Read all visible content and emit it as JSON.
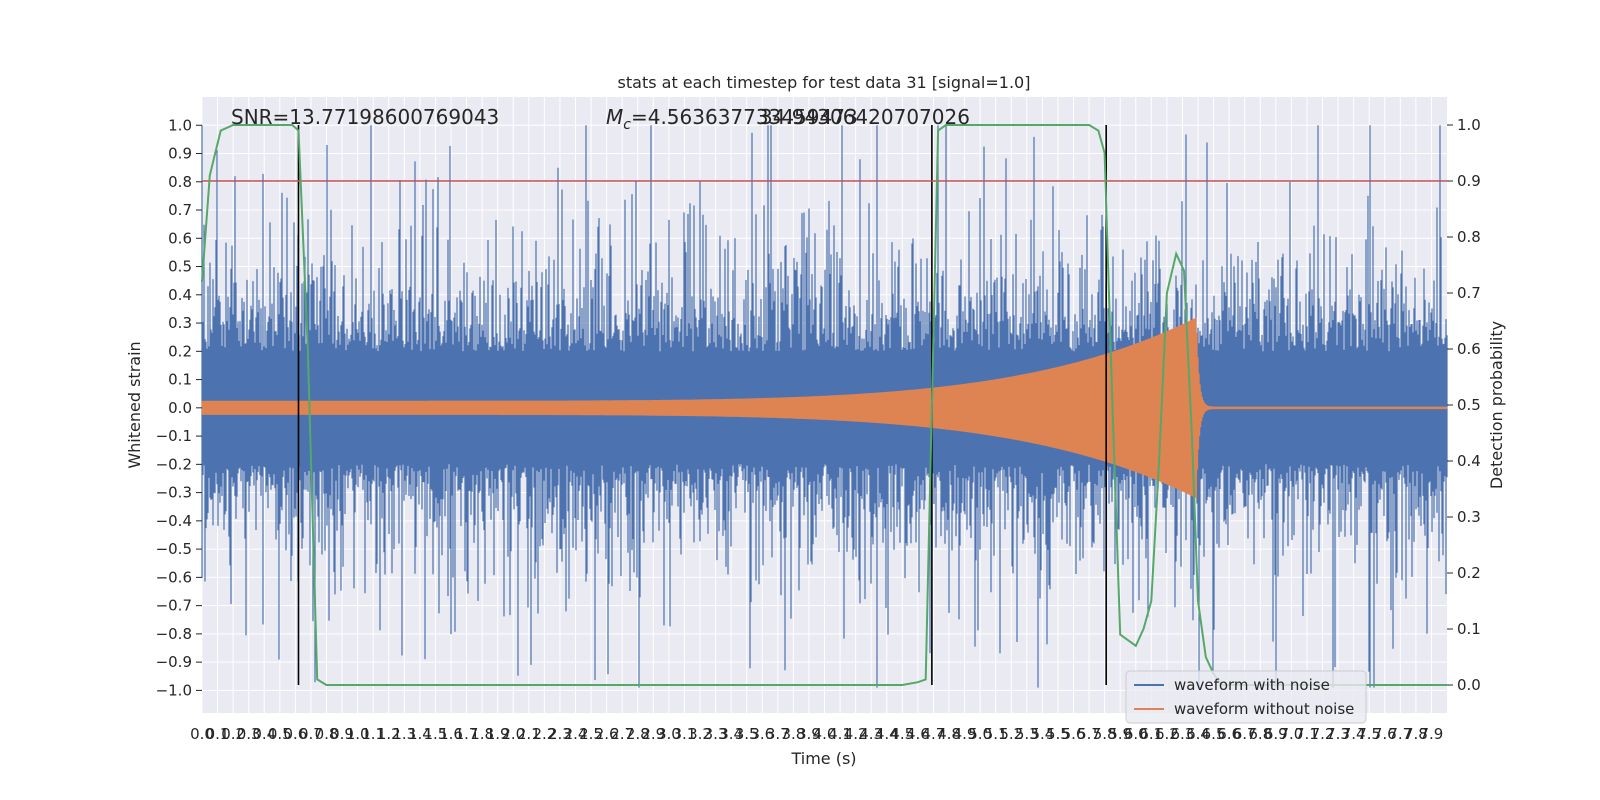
{
  "chart_data": {
    "type": "line",
    "title": "stats at each timestep for test data 31 [signal=1.0]",
    "xlabel": "Time (s)",
    "ylabel_left": "Whitened strain",
    "ylabel_right": "Detection probability",
    "xlim": [
      0,
      8
    ],
    "ylim_left": [
      -1.08,
      1.1
    ],
    "ylim_right": [
      -0.05,
      1.05
    ],
    "x_ticks": [
      "0.0",
      "0.1",
      "0.2",
      "0.3",
      "0.4",
      "0.5",
      "0.6",
      "0.7",
      "0.8",
      "0.9",
      "1.0",
      "1.1",
      "1.2",
      "1.3",
      "1.4",
      "1.5",
      "1.6",
      "1.7",
      "1.8",
      "1.9",
      "2.0",
      "2.1",
      "2.2",
      "2.3",
      "2.4",
      "2.5",
      "2.6",
      "2.7",
      "2.8",
      "2.9",
      "3.0",
      "3.1",
      "3.2",
      "3.3",
      "3.4",
      "3.5",
      "3.6",
      "3.7",
      "3.8",
      "3.9",
      "4.0",
      "4.1",
      "4.2",
      "4.3",
      "4.4",
      "4.5",
      "4.6",
      "4.7",
      "4.8",
      "4.9",
      "5.0",
      "5.1",
      "5.2",
      "5.3",
      "5.4",
      "5.5",
      "5.6",
      "5.7",
      "5.8",
      "5.9",
      "6.0",
      "6.1",
      "6.2",
      "6.3",
      "6.4",
      "6.5",
      "6.6",
      "6.7",
      "6.8",
      "6.9",
      "7.0",
      "7.1",
      "7.2",
      "7.3",
      "7.4",
      "7.5",
      "7.6",
      "7.7",
      "7.8",
      "7.9"
    ],
    "y_ticks_left": [
      "1.0",
      "0.9",
      "0.8",
      "0.7",
      "0.6",
      "0.5",
      "0.4",
      "0.3",
      "0.2",
      "0.1",
      "0.0",
      "−0.1",
      "−0.2",
      "−0.3",
      "−0.4",
      "−0.5",
      "−0.6",
      "−0.7",
      "−0.8",
      "−0.9",
      "−1.0"
    ],
    "y_ticks_right": [
      "1.0",
      "0.9",
      "0.8",
      "0.7",
      "0.6",
      "0.5",
      "0.4",
      "0.3",
      "0.2",
      "0.1",
      "0.0"
    ],
    "threshold": {
      "axis": "right",
      "value": 0.9
    },
    "vertical_markers": [
      0.62,
      4.69,
      5.81
    ],
    "noise_envelope": {
      "core": 0.2,
      "spread": 0.45,
      "peak_top": 1.0,
      "peak_bottom": -0.99
    },
    "signal_chirp": {
      "start": 0.0,
      "merger": 6.39,
      "amp_start": 0.025,
      "amp_merger": 0.32
    },
    "detection_probability": {
      "x": [
        0.0,
        0.05,
        0.12,
        0.2,
        0.3,
        0.5,
        0.58,
        0.62,
        0.68,
        0.74,
        0.8,
        0.9,
        1.2,
        2.0,
        3.0,
        4.0,
        4.5,
        4.6,
        4.65,
        4.69,
        4.73,
        4.78,
        5.0,
        5.5,
        5.7,
        5.76,
        5.8,
        5.85,
        5.9,
        5.95,
        6.0,
        6.05,
        6.1,
        6.15,
        6.2,
        6.26,
        6.31,
        6.36,
        6.4,
        6.45,
        6.5,
        6.55,
        6.6,
        7.0,
        7.5,
        8.0
      ],
      "y": [
        0.72,
        0.91,
        0.99,
        1.0,
        1.0,
        1.0,
        1.0,
        0.99,
        0.6,
        0.01,
        0.0,
        0.0,
        0.0,
        0.0,
        0.0,
        0.0,
        0.0,
        0.005,
        0.01,
        0.5,
        0.99,
        1.0,
        1.0,
        1.0,
        1.0,
        0.99,
        0.95,
        0.5,
        0.09,
        0.08,
        0.07,
        0.1,
        0.15,
        0.4,
        0.7,
        0.77,
        0.74,
        0.45,
        0.15,
        0.05,
        0.02,
        0.0,
        0.0,
        0.0,
        0.0,
        0.0
      ]
    },
    "annotations": {
      "snr": "SNR=13.77198600769043",
      "mc_prefix": "M",
      "mc_sub": "c",
      "mc_value": "=4.563637733459473",
      "overlap_text": "34.94306420707026"
    },
    "legend": {
      "position": "lower-right",
      "entries": [
        {
          "label": "waveform with noise",
          "color": "#4c72b0"
        },
        {
          "label": "waveform without noise",
          "color": "#dd8452"
        }
      ]
    },
    "colors": {
      "background": "#eaeaf2",
      "grid": "#ffffff",
      "noise": "#4c72b0",
      "signal": "#dd8452",
      "probability": "#55a868",
      "threshold": "#c44e52",
      "marker": "#000000"
    }
  }
}
